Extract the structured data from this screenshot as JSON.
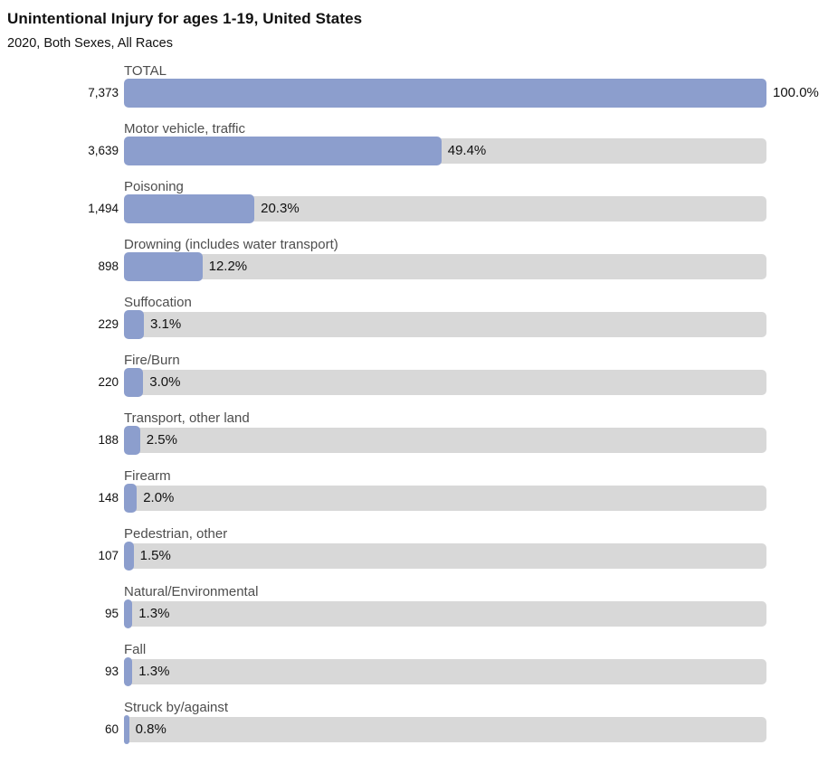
{
  "header": {
    "title": "Unintentional Injury for ages 1-19, United States",
    "subtitle": "2020, Both Sexes, All Races"
  },
  "colors": {
    "bar_fill": "#8C9ECD",
    "bar_track": "#D8D8D8",
    "label_text": "#4D4D4D",
    "value_text": "#111111"
  },
  "chart_data": {
    "type": "bar",
    "orientation": "horizontal",
    "title": "Unintentional Injury for ages 1-19, United States",
    "subtitle": "2020, Both Sexes, All Races",
    "xlim": [
      0,
      100
    ],
    "unit": "percent",
    "grid": false,
    "legend": "none",
    "categories": [
      "TOTAL",
      "Motor vehicle, traffic",
      "Poisoning",
      "Drowning (includes water transport)",
      "Suffocation",
      "Fire/Burn",
      "Transport, other land",
      "Firearm",
      "Pedestrian, other",
      "Natural/Environmental",
      "Fall",
      "Struck by/against"
    ],
    "counts": [
      7373,
      3639,
      1494,
      898,
      229,
      220,
      188,
      148,
      107,
      95,
      93,
      60
    ],
    "values": [
      100.0,
      49.4,
      20.3,
      12.2,
      3.1,
      3.0,
      2.5,
      2.0,
      1.5,
      1.3,
      1.3,
      0.8
    ],
    "rows": [
      {
        "label": "TOTAL",
        "count": "7,373",
        "percent": 100.0,
        "percent_label": "100.0%"
      },
      {
        "label": "Motor vehicle, traffic",
        "count": "3,639",
        "percent": 49.4,
        "percent_label": "49.4%"
      },
      {
        "label": "Poisoning",
        "count": "1,494",
        "percent": 20.3,
        "percent_label": "20.3%"
      },
      {
        "label": "Drowning (includes water transport)",
        "count": "898",
        "percent": 12.2,
        "percent_label": "12.2%"
      },
      {
        "label": "Suffocation",
        "count": "229",
        "percent": 3.1,
        "percent_label": "3.1%"
      },
      {
        "label": "Fire/Burn",
        "count": "220",
        "percent": 3.0,
        "percent_label": "3.0%"
      },
      {
        "label": "Transport, other land",
        "count": "188",
        "percent": 2.5,
        "percent_label": "2.5%"
      },
      {
        "label": "Firearm",
        "count": "148",
        "percent": 2.0,
        "percent_label": "2.0%"
      },
      {
        "label": "Pedestrian, other",
        "count": "107",
        "percent": 1.5,
        "percent_label": "1.5%"
      },
      {
        "label": "Natural/Environmental",
        "count": "95",
        "percent": 1.3,
        "percent_label": "1.3%"
      },
      {
        "label": "Fall",
        "count": "93",
        "percent": 1.3,
        "percent_label": "1.3%"
      },
      {
        "label": "Struck by/against",
        "count": "60",
        "percent": 0.8,
        "percent_label": "0.8%"
      }
    ]
  }
}
